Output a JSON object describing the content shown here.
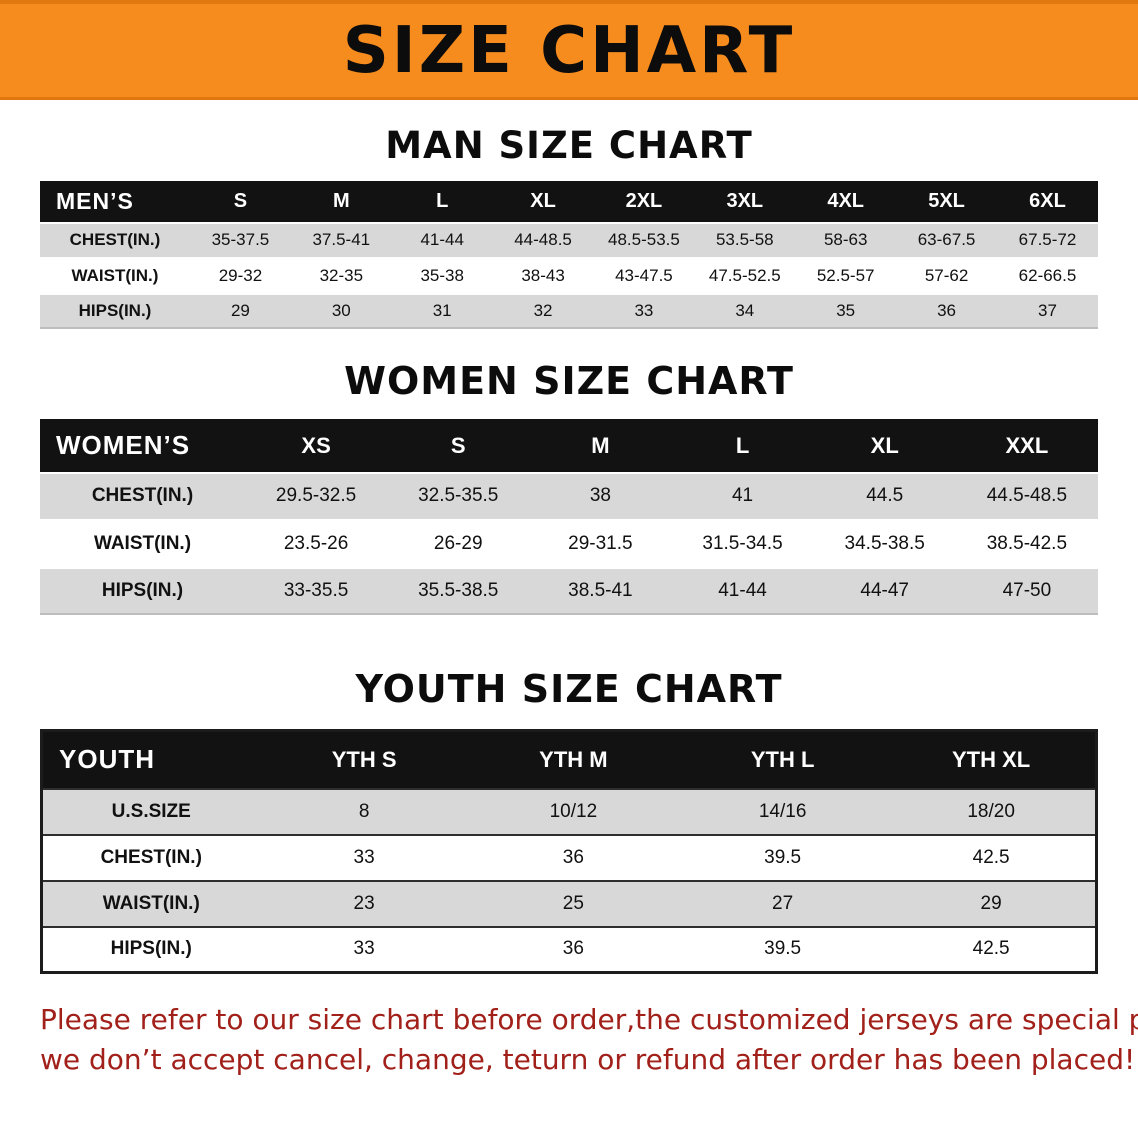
{
  "banner": {
    "title": "SIZE CHART"
  },
  "colors": {
    "banner_orange": "#f68b1e",
    "table_header_black": "#121212",
    "row_stripe_gray": "#d8d8d8",
    "note_red": "#a2201a"
  },
  "sections": [
    {
      "heading": "MAN SIZE CHART",
      "table": {
        "header": [
          "MEN’S",
          "S",
          "M",
          "L",
          "XL",
          "2XL",
          "3XL",
          "4XL",
          "5XL",
          "6XL"
        ],
        "rows": [
          [
            "CHEST(IN.)",
            "35-37.5",
            "37.5-41",
            "41-44",
            "44-48.5",
            "48.5-53.5",
            "53.5-58",
            "58-63",
            "63-67.5",
            "67.5-72"
          ],
          [
            "WAIST(IN.)",
            "29-32",
            "32-35",
            "35-38",
            "38-43",
            "43-47.5",
            "47.5-52.5",
            "52.5-57",
            "57-62",
            "62-66.5"
          ],
          [
            "HIPS(IN.)",
            "29",
            "30",
            "31",
            "32",
            "33",
            "34",
            "35",
            "36",
            "37"
          ]
        ]
      }
    },
    {
      "heading": "WOMEN SIZE CHART",
      "table": {
        "header": [
          "WOMEN’S",
          "XS",
          "S",
          "M",
          "L",
          "XL",
          "XXL"
        ],
        "rows": [
          [
            "CHEST(IN.)",
            "29.5-32.5",
            "32.5-35.5",
            "38",
            "41",
            "44.5",
            "44.5-48.5"
          ],
          [
            "WAIST(IN.)",
            "23.5-26",
            "26-29",
            "29-31.5",
            "31.5-34.5",
            "34.5-38.5",
            "38.5-42.5"
          ],
          [
            "HIPS(IN.)",
            "33-35.5",
            "35.5-38.5",
            "38.5-41",
            "41-44",
            "44-47",
            "47-50"
          ]
        ]
      }
    },
    {
      "heading": "YOUTH SIZE CHART",
      "table": {
        "header": [
          "YOUTH",
          "YTH S",
          "YTH M",
          "YTH L",
          "YTH XL"
        ],
        "rows": [
          [
            "U.S.SIZE",
            "8",
            "10/12",
            "14/16",
            "18/20"
          ],
          [
            "CHEST(IN.)",
            "33",
            "36",
            "39.5",
            "42.5"
          ],
          [
            "WAIST(IN.)",
            "23",
            "25",
            "27",
            "29"
          ],
          [
            "HIPS(IN.)",
            "33",
            "36",
            "39.5",
            "42.5"
          ]
        ]
      }
    }
  ],
  "note": {
    "line1": "Please refer to our size chart before order,the customized jerseys are special products,",
    "line2": "we don’t accept cancel, change, teturn or refund after order has been placed!"
  }
}
